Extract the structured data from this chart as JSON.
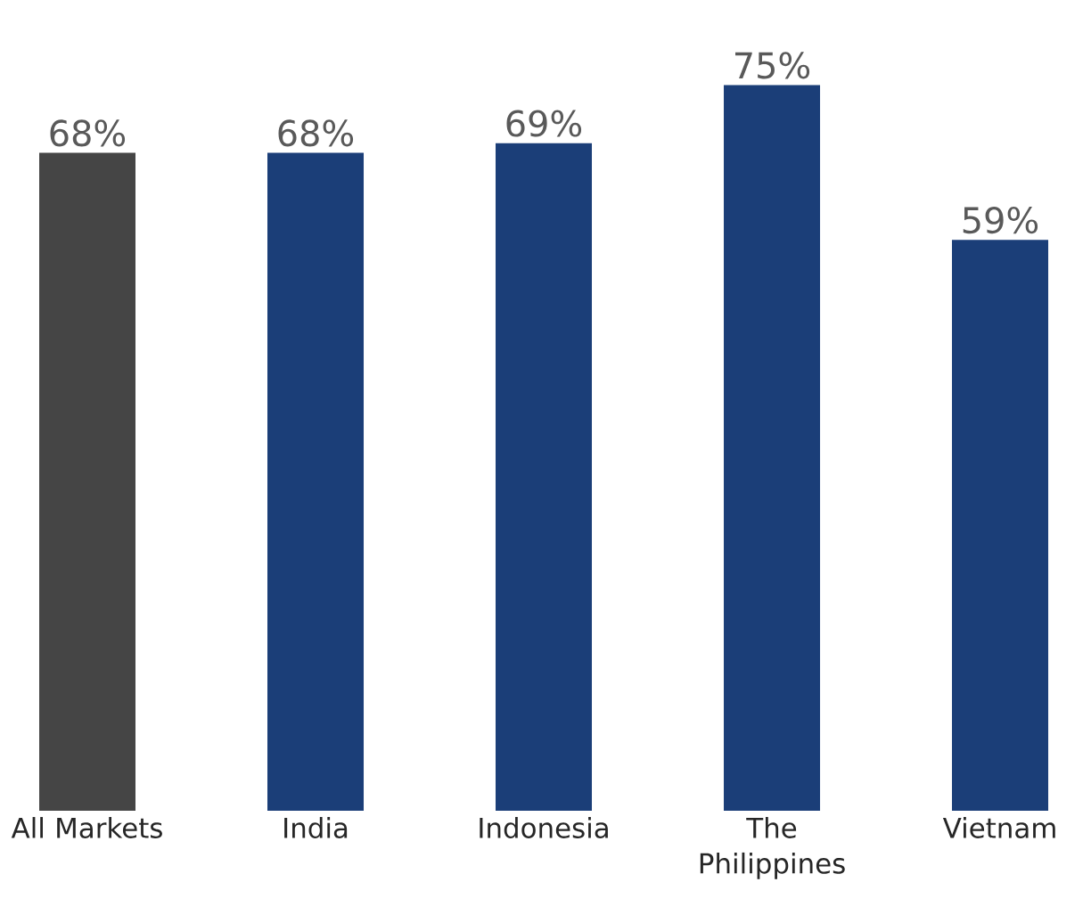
{
  "chart_data": {
    "type": "bar",
    "categories": [
      "All Markets",
      "India",
      "Indonesia",
      "The Philippines",
      "Vietnam"
    ],
    "values": [
      68,
      68,
      69,
      75,
      59
    ],
    "colors": [
      "#454545",
      "#1b3e78",
      "#1b3e78",
      "#1b3e78",
      "#1b3e78"
    ],
    "value_labels": [
      "68%",
      "68%",
      "69%",
      "75%",
      "59%"
    ]
  }
}
